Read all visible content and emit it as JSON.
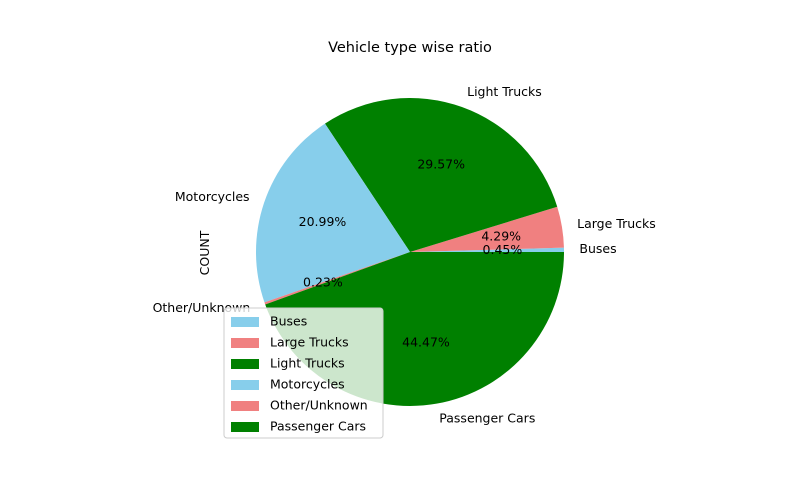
{
  "chart_data": {
    "type": "pie",
    "title": "Vehicle type wise ratio",
    "ylabel": "COUNT",
    "legend_position": "lower-left",
    "categories": [
      "Buses",
      "Large Trucks",
      "Light Trucks",
      "Motorcycles",
      "Other/Unknown",
      "Passenger Cars"
    ],
    "values": [
      0.45,
      4.29,
      29.57,
      20.99,
      0.23,
      44.47
    ],
    "percent_labels": [
      "0.45%",
      "4.29%",
      "29.57%",
      "20.99%",
      "0.23%",
      "44.47%"
    ],
    "colors": [
      "#87ceeb",
      "#f08080",
      "#008000",
      "#87ceeb",
      "#f08080",
      "#008000"
    ]
  }
}
